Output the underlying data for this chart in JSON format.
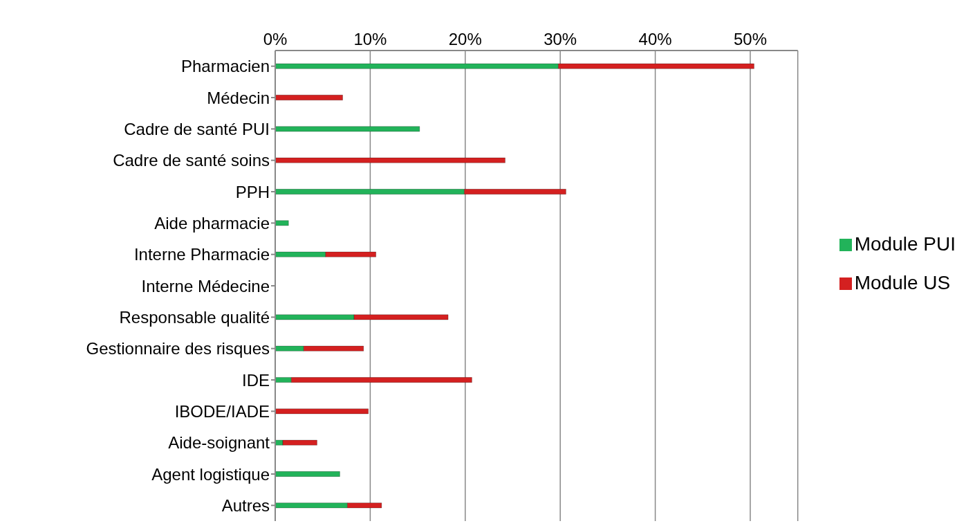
{
  "chart_data": {
    "type": "bar",
    "orientation": "horizontal",
    "stacked": true,
    "categories": [
      "Pharmacien",
      "Médecin",
      "Cadre de santé PUI",
      "Cadre de santé soins",
      "PPH",
      "Aide pharmacie",
      "Interne Pharmacie",
      "Interne Médecine",
      "Responsable qualité",
      "Gestionnaire des risques",
      "IDE",
      "IBODE/IADE",
      "Aide-soignant",
      "Agent logistique",
      "Autres"
    ],
    "series": [
      {
        "name": "Module PUI",
        "color": "#22b35a",
        "values": [
          29.8,
          0,
          15.2,
          0,
          19.9,
          1.4,
          5.3,
          0,
          8.3,
          3.0,
          1.7,
          0,
          0.8,
          6.8,
          7.6
        ]
      },
      {
        "name": "Module US",
        "color": "#d42020",
        "values": [
          20.6,
          7.1,
          0,
          24.2,
          10.7,
          0,
          5.3,
          0,
          9.9,
          6.3,
          19.0,
          9.8,
          3.6,
          0,
          3.6
        ]
      }
    ],
    "xlim": [
      0,
      55
    ],
    "xticks": [
      {
        "value": 0,
        "label": "0%"
      },
      {
        "value": 10,
        "label": "10%"
      },
      {
        "value": 20,
        "label": "20%"
      },
      {
        "value": 30,
        "label": "30%"
      },
      {
        "value": 40,
        "label": "40%"
      },
      {
        "value": 50,
        "label": "50%"
      }
    ],
    "grid": "x",
    "legend": "right"
  }
}
